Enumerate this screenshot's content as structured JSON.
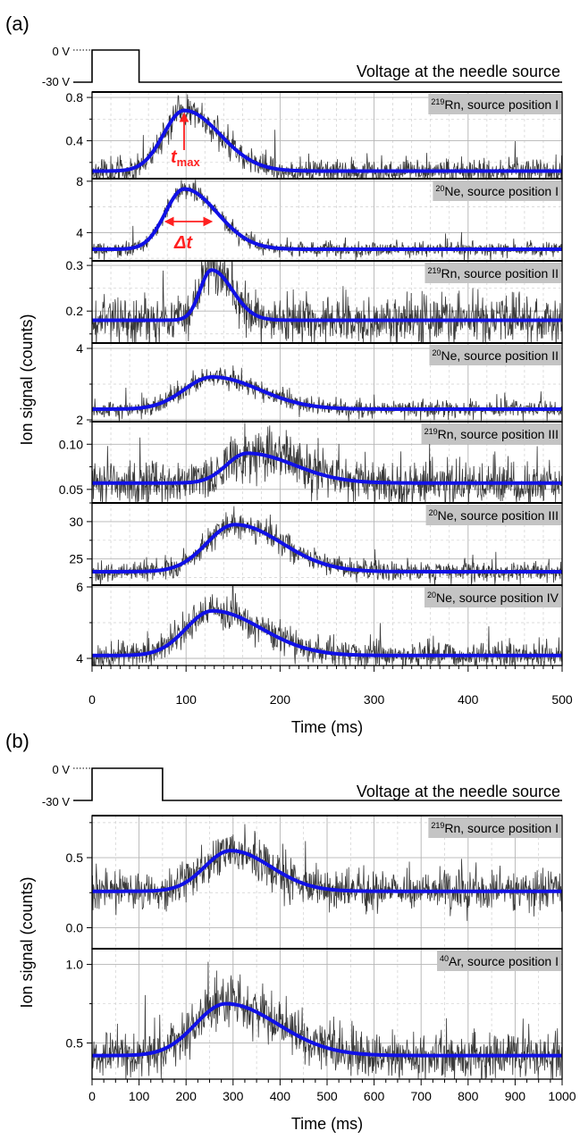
{
  "chart_data": [
    {
      "panel_label": "(a)",
      "type": "line",
      "xlabel": "Time (ms)",
      "ylabel": "Ion signal (counts)",
      "xlim": [
        0,
        500
      ],
      "xticks": [
        0,
        100,
        200,
        300,
        400,
        500
      ],
      "grid": true,
      "pulse": {
        "high_label": "0 V",
        "low_label": "-30 V",
        "on": [
          0,
          50
        ],
        "caption": "Voltage at the needle source"
      },
      "series": [
        {
          "name": "219Rn, source position I",
          "isotope_mass": "219",
          "element_label": "Rn, source position I",
          "ylim": [
            0.05,
            0.85
          ],
          "yticks": [
            0.4,
            0.8
          ],
          "fit": {
            "baseline": 0.12,
            "amplitude": 0.56,
            "t_max": 98,
            "sigma_rise": 22,
            "sigma_fall": 38
          },
          "noise": 0.06
        },
        {
          "name": "20Ne, source position I",
          "isotope_mass": "20",
          "element_label": "Ne, source position I",
          "ylim": [
            1.8,
            8.2
          ],
          "yticks": [
            4,
            8
          ],
          "fit": {
            "baseline": 2.7,
            "amplitude": 4.7,
            "t_max": 98,
            "sigma_rise": 20,
            "sigma_fall": 35
          },
          "noise": 0.3
        },
        {
          "name": "219Rn, source position II",
          "isotope_mass": "219",
          "element_label": "Rn, source position II",
          "ylim": [
            0.13,
            0.31
          ],
          "yticks": [
            0.2,
            0.3
          ],
          "fit": {
            "baseline": 0.18,
            "amplitude": 0.11,
            "t_max": 127,
            "sigma_rise": 12,
            "sigma_fall": 22
          },
          "noise": 0.025
        },
        {
          "name": "20Ne, source position II",
          "isotope_mass": "20",
          "element_label": "Ne, source position II",
          "ylim": [
            1.95,
            4.15
          ],
          "yticks": [
            2,
            4
          ],
          "fit": {
            "baseline": 2.3,
            "amplitude": 0.9,
            "t_max": 128,
            "sigma_rise": 30,
            "sigma_fall": 50
          },
          "noise": 0.12
        },
        {
          "name": "219Rn, source position III",
          "isotope_mass": "219",
          "element_label": "Rn, source position III",
          "ylim": [
            0.035,
            0.125
          ],
          "yticks": [
            0.05,
            0.1
          ],
          "fit": {
            "baseline": 0.057,
            "amplitude": 0.033,
            "t_max": 165,
            "sigma_rise": 22,
            "sigma_fall": 50
          },
          "noise": 0.012
        },
        {
          "name": "20Ne, source position III",
          "isotope_mass": "20",
          "element_label": "Ne, source position III",
          "ylim": [
            21.5,
            32.5
          ],
          "yticks": [
            25,
            30
          ],
          "fit": {
            "baseline": 23.3,
            "amplitude": 6.3,
            "t_max": 152,
            "sigma_rise": 30,
            "sigma_fall": 50
          },
          "noise": 0.7
        },
        {
          "name": "20Ne, source position IV",
          "isotope_mass": "20",
          "element_label": "Ne, source position IV",
          "ylim": [
            3.8,
            6.05
          ],
          "yticks": [
            4,
            6
          ],
          "fit": {
            "baseline": 4.08,
            "amplitude": 1.25,
            "t_max": 128,
            "sigma_rise": 28,
            "sigma_fall": 52
          },
          "noise": 0.2
        }
      ],
      "annotations": [
        {
          "text": "t",
          "subscript": "max",
          "panel": 0
        },
        {
          "text": "Δt",
          "panel": 1
        }
      ]
    },
    {
      "panel_label": "(b)",
      "type": "line",
      "xlabel": "Time (ms)",
      "ylabel": "Ion signal (counts)",
      "xlim": [
        0,
        1000
      ],
      "xticks": [
        0,
        100,
        200,
        300,
        400,
        500,
        600,
        700,
        800,
        900,
        1000
      ],
      "grid": true,
      "pulse": {
        "high_label": "0 V",
        "low_label": "-30 V",
        "on": [
          0,
          150
        ],
        "caption": "Voltage at the needle source"
      },
      "series": [
        {
          "name": "219Rn, source position I",
          "isotope_mass": "219",
          "element_label": "Rn, source position I",
          "ylim": [
            -0.15,
            0.8
          ],
          "yticks": [
            0.0,
            0.5
          ],
          "fit": {
            "baseline": 0.26,
            "amplitude": 0.29,
            "t_max": 295,
            "sigma_rise": 55,
            "sigma_fall": 85
          },
          "noise": 0.07
        },
        {
          "name": "40Ar, source position I",
          "isotope_mass": "40",
          "element_label": "Ar, source position I",
          "ylim": [
            0.27,
            1.1
          ],
          "yticks": [
            0.5,
            1.0
          ],
          "fit": {
            "baseline": 0.42,
            "amplitude": 0.33,
            "t_max": 285,
            "sigma_rise": 65,
            "sigma_fall": 110
          },
          "noise": 0.075
        }
      ]
    }
  ]
}
